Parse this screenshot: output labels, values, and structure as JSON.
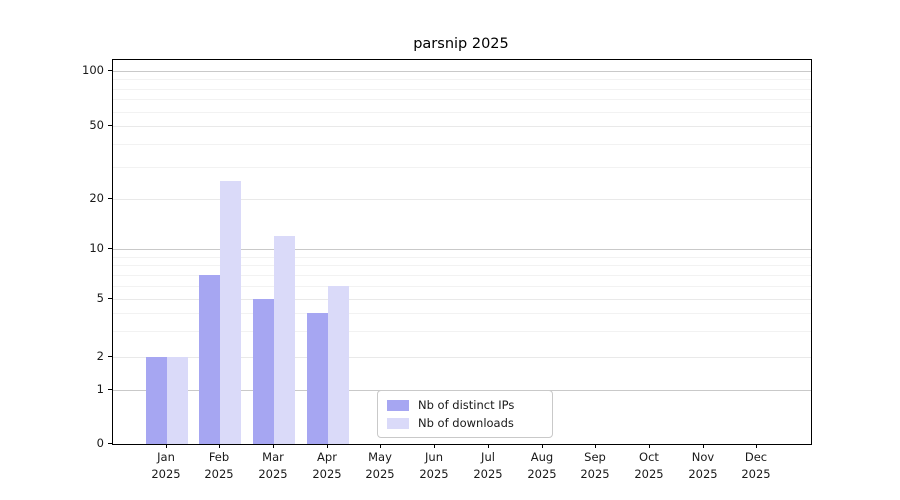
{
  "chart_data": {
    "type": "bar",
    "title": "parsnip 2025",
    "categories": [
      "Jan",
      "Feb",
      "Mar",
      "Apr",
      "May",
      "Jun",
      "Jul",
      "Aug",
      "Sep",
      "Oct",
      "Nov",
      "Dec"
    ],
    "year_label": "2025",
    "series": [
      {
        "key": "distinct-ips",
        "name": "Nb of distinct IPs",
        "color": "#a6a6f2",
        "values": [
          2,
          7,
          5,
          4,
          null,
          null,
          null,
          null,
          null,
          null,
          null,
          null
        ]
      },
      {
        "key": "downloads",
        "name": "Nb of downloads",
        "color": "#dadaf9",
        "values": [
          2,
          25,
          12,
          6,
          null,
          null,
          null,
          null,
          null,
          null,
          null,
          null
        ]
      }
    ],
    "y_ticks": [
      0,
      1,
      2,
      5,
      10,
      20,
      50,
      100
    ],
    "y_mid_gridlines": [
      2,
      5,
      20,
      50
    ],
    "y_major_gridlines": [
      1,
      10,
      100
    ],
    "y_minor_gridlines": [
      3,
      4,
      6,
      7,
      8,
      9,
      30,
      40,
      60,
      70,
      80,
      90
    ],
    "ylim": [
      0,
      115
    ],
    "scale": "log-like above 1, linear 0-1",
    "grid": "horizontal",
    "legend_position": "inside bottom, left of center",
    "xlabel": "",
    "ylabel": ""
  }
}
